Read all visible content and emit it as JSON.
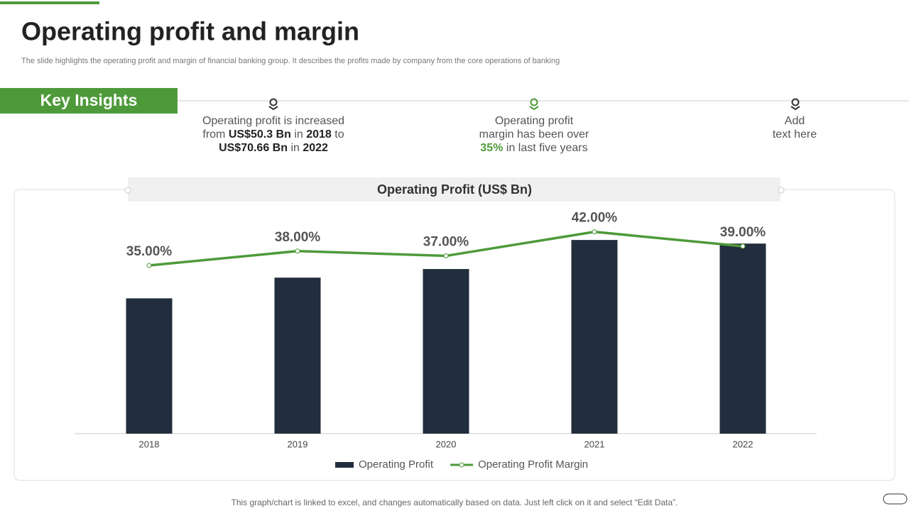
{
  "header": {
    "title": "Operating profit and margin",
    "subtitle": "The slide highlights the operating profit and margin of financial banking group. It describes the profits made by company from the core operations of banking"
  },
  "key_insights": {
    "label": "Key Insights",
    "items": [
      [
        "Operating profit is increased",
        "from ",
        "US$50.3 Bn",
        " in ",
        "2018",
        " to",
        "US$70.66 Bn",
        " in ",
        "2022"
      ],
      [
        "Operating profit",
        "margin has been over",
        "35%",
        " in last five years"
      ],
      [
        "Add",
        "text here"
      ]
    ]
  },
  "chart_data": {
    "type": "bar",
    "title": "Operating Profit (US$ Bn)",
    "categories": [
      "2018",
      "2019",
      "2020",
      "2021",
      "2022"
    ],
    "series": [
      {
        "name": "Operating Profit",
        "type": "bar",
        "color": "#222d3d",
        "values": [
          50.3,
          58.0,
          61.2,
          72.0,
          70.66
        ]
      },
      {
        "name": "Operating Profit Margin",
        "type": "line",
        "color": "#4e9a3a",
        "axis": "y2",
        "values": [
          35,
          38,
          37,
          42,
          39
        ],
        "value_labels": [
          "35.00%",
          "38.00%",
          "37.00%",
          "42.00%",
          "39.00%"
        ]
      }
    ]
  },
  "footer": {
    "note": "This graph/chart is linked to excel, and changes automatically based on data. Just left click on it and select “Edit Data”."
  }
}
